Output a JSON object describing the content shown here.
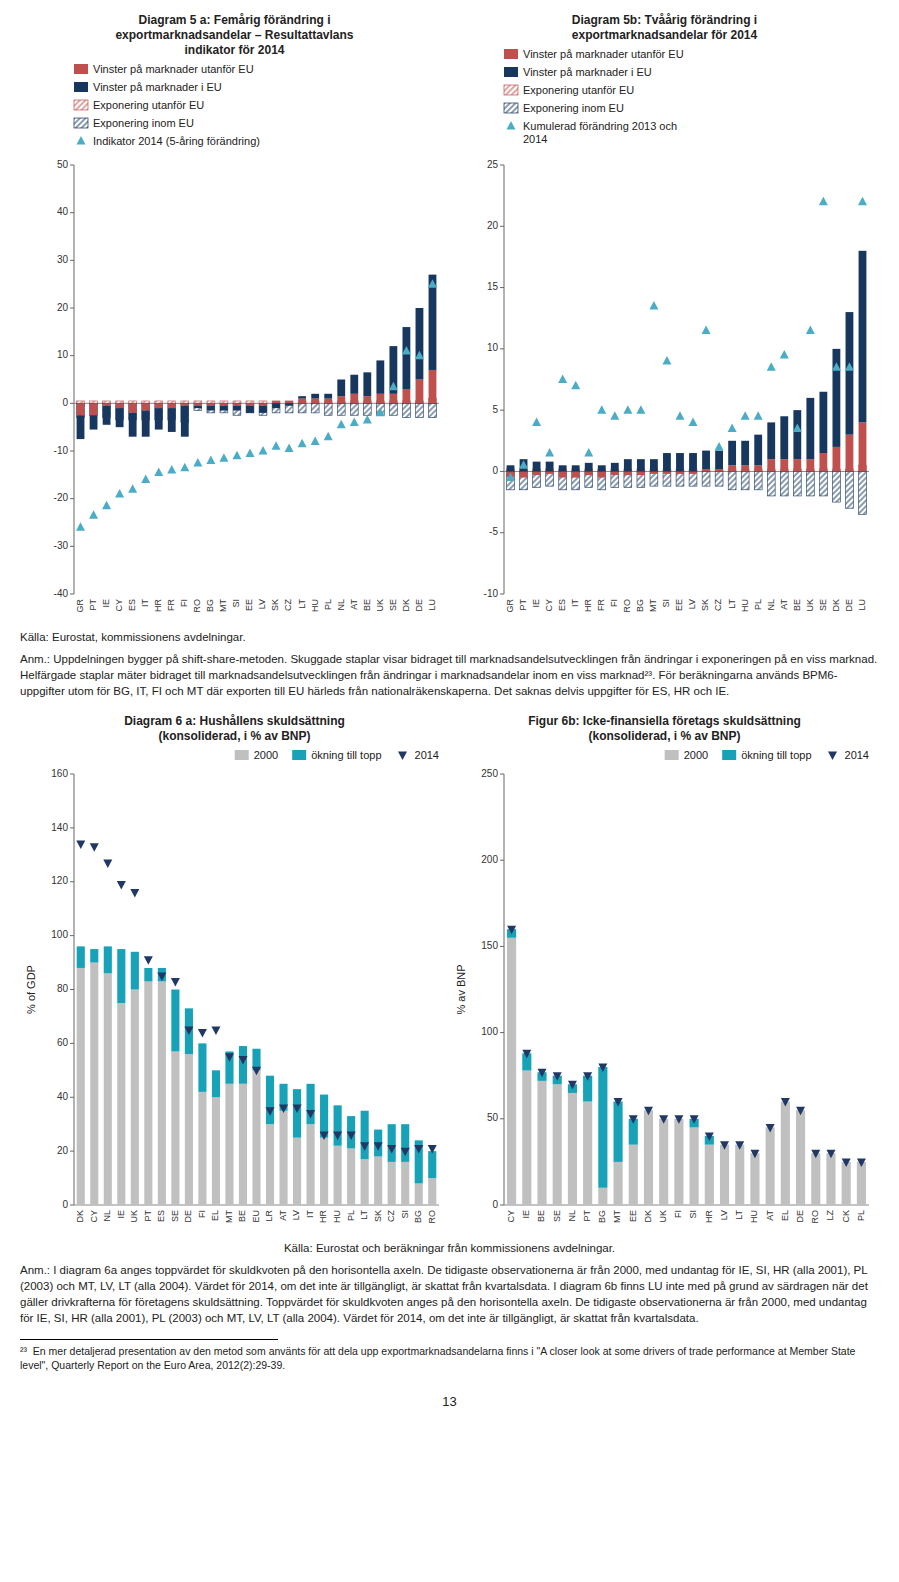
{
  "chart_data": [
    {
      "type": "bar",
      "title": "Diagram 5 a: Femårig förändring i\nexportmarknadsandelar – Resultattavlans\nindikator för 2014",
      "categories": [
        "GR",
        "PT",
        "IE",
        "CY",
        "ES",
        "IT",
        "HR",
        "FR",
        "FI",
        "RO",
        "BG",
        "MT",
        "SI",
        "EE",
        "LV",
        "SK",
        "CZ",
        "LT",
        "HU",
        "PL",
        "NL",
        "AT",
        "BE",
        "UK",
        "SE",
        "DK",
        "DE",
        "LU"
      ],
      "stacked": true,
      "legend": "upper left",
      "grid": false,
      "ylim": [
        -40,
        50
      ],
      "yticks": [
        -40,
        -30,
        -20,
        -10,
        0,
        10,
        20,
        30,
        40,
        50
      ],
      "series": [
        {
          "name": "Vinster på marknader utanför EU",
          "color": "#c0504d",
          "values": [
            -2.5,
            -2.5,
            -0.5,
            -1.0,
            -2.0,
            -1.5,
            -1.0,
            -1.0,
            -0.5,
            -0.5,
            -0.5,
            -0.5,
            -0.5,
            -0.5,
            -0.5,
            0.5,
            0.5,
            1.0,
            1.0,
            1.0,
            1.5,
            2.0,
            1.5,
            2.0,
            2.0,
            3.0,
            5.0,
            7.0
          ]
        },
        {
          "name": "Vinster på marknader i EU",
          "color": "#17375e",
          "values": [
            -5.0,
            -3.0,
            -4.0,
            -4.0,
            -5.0,
            -5.5,
            -4.5,
            -5.0,
            -6.5,
            -0.5,
            -1.0,
            -1.0,
            -1.0,
            -1.5,
            -1.5,
            -1.0,
            -0.5,
            0.5,
            1.0,
            1.0,
            3.5,
            4.0,
            5.0,
            7.0,
            10.0,
            13.0,
            15.0,
            20.0
          ]
        },
        {
          "name": "Exponering utanför EU",
          "color": "#c0504d",
          "line_style": "hatched",
          "values": [
            0.5,
            0.5,
            0.5,
            0.5,
            0.5,
            0.5,
            0.5,
            0.5,
            0.5,
            0.5,
            0.5,
            0.5,
            0.5,
            0.5,
            0.5,
            0.5,
            0.5,
            0.5,
            0.5,
            0.5,
            0.5,
            0.5,
            0.5,
            0.5,
            0.5,
            0.5,
            0.5,
            1.0
          ]
        },
        {
          "name": "Exponering inom EU",
          "color": "#17375e",
          "line_style": "hatched",
          "values": [
            -3.0,
            -2.5,
            -3.0,
            -3.5,
            -3.5,
            -3.5,
            -3.5,
            -3.5,
            -4.0,
            -1.5,
            -2.0,
            -2.0,
            -2.5,
            -2.0,
            -2.5,
            -2.0,
            -2.0,
            -2.0,
            -2.0,
            -2.5,
            -2.5,
            -2.5,
            -2.5,
            -2.5,
            -2.5,
            -3.0,
            -3.0,
            -3.0
          ]
        },
        {
          "name": "Indikator 2014 (5-åring förändring)",
          "type": "scatter",
          "marker": "triangle-up",
          "color": "#4bacc6",
          "values": [
            -26.0,
            -23.5,
            -21.5,
            -19.0,
            -18.0,
            -16.0,
            -14.5,
            -14.0,
            -13.5,
            -12.5,
            -12.0,
            -11.5,
            -11.0,
            -10.5,
            -10.0,
            -9.0,
            -9.5,
            -8.5,
            -8.0,
            -7.0,
            -4.5,
            -4.0,
            -3.5,
            -2.0,
            3.5,
            11.0,
            10.0,
            25.0
          ]
        }
      ]
    },
    {
      "type": "bar",
      "title": "Diagram 5b: Tvåårig förändring i\nexportmarknadsandelar för 2014",
      "categories": [
        "GR",
        "PT",
        "IE",
        "CY",
        "ES",
        "IT",
        "HR",
        "FR",
        "FI",
        "RO",
        "BG",
        "MT",
        "SI",
        "EE",
        "LV",
        "SK",
        "CZ",
        "LT",
        "HU",
        "PL",
        "NL",
        "AT",
        "BE",
        "UK",
        "SE",
        "DK",
        "DE",
        "LU"
      ],
      "stacked": true,
      "legend": "upper left",
      "grid": false,
      "ylim": [
        -10,
        25
      ],
      "yticks": [
        -10,
        -5,
        0,
        5,
        10,
        15,
        20,
        25
      ],
      "series": [
        {
          "name": "Vinster på marknader utanför EU",
          "color": "#c0504d",
          "values": [
            -0.5,
            -0.5,
            -0.3,
            -0.2,
            -0.5,
            -0.5,
            -0.3,
            -0.5,
            -0.3,
            -0.3,
            -0.3,
            -0.2,
            -0.2,
            -0.2,
            -0.2,
            0.2,
            0.2,
            0.5,
            0.5,
            0.5,
            1.0,
            1.0,
            1.0,
            1.0,
            1.5,
            2.0,
            3.0,
            4.0
          ]
        },
        {
          "name": "Vinster på marknader i EU",
          "color": "#17375e",
          "values": [
            0.5,
            1.0,
            0.8,
            0.8,
            0.5,
            0.5,
            0.7,
            0.5,
            0.7,
            1.0,
            1.0,
            1.0,
            1.5,
            1.5,
            1.5,
            1.5,
            1.5,
            2.0,
            2.0,
            2.5,
            3.0,
            3.5,
            4.0,
            5.0,
            5.0,
            8.0,
            10.0,
            14.0
          ]
        },
        {
          "name": "Exponering utanför EU",
          "color": "#c0504d",
          "line_style": "hatched",
          "values": [
            0.2,
            0.2,
            0.2,
            0.2,
            0.2,
            0.2,
            0.2,
            0.2,
            0.2,
            0.2,
            0.2,
            0.2,
            0.2,
            0.2,
            0.2,
            0.2,
            0.2,
            0.2,
            0.2,
            0.2,
            0.2,
            0.2,
            0.2,
            0.2,
            0.2,
            0.2,
            0.2,
            0.5
          ]
        },
        {
          "name": "Exponering inom EU",
          "color": "#17375e",
          "line_style": "hatched",
          "values": [
            -1.5,
            -1.5,
            -1.3,
            -1.2,
            -1.5,
            -1.5,
            -1.3,
            -1.5,
            -1.3,
            -1.3,
            -1.3,
            -1.2,
            -1.2,
            -1.2,
            -1.2,
            -1.2,
            -1.2,
            -1.5,
            -1.5,
            -1.5,
            -2.0,
            -2.0,
            -2.0,
            -2.0,
            -2.0,
            -2.5,
            -3.0,
            -3.5
          ]
        },
        {
          "name": "Kumulerad förändring 2013 och\n2014",
          "type": "scatter",
          "marker": "triangle-up",
          "color": "#4bacc6",
          "values": [
            -0.5,
            0.5,
            4.0,
            1.5,
            7.5,
            7.0,
            1.5,
            5.0,
            4.5,
            5.0,
            5.0,
            13.5,
            9.0,
            4.5,
            4.0,
            11.5,
            2.0,
            3.5,
            4.5,
            4.5,
            8.5,
            9.5,
            3.5,
            11.5,
            22.0,
            8.5,
            8.5,
            22.0
          ]
        }
      ]
    },
    {
      "type": "bar",
      "title": "Diagram 6 a: Hushållens skuldsättning\n(konsoliderad, i % av BNP)",
      "ylabel": "% of GDP",
      "categories": [
        "DK",
        "CY",
        "NL",
        "IE",
        "UK",
        "PT",
        "ES",
        "SE",
        "DE",
        "FI",
        "EL",
        "MT",
        "BE",
        "EU",
        "LR",
        "AT",
        "LV",
        "IT",
        "HR",
        "HU",
        "PL",
        "LT",
        "SK",
        "CZ",
        "SI",
        "BG",
        "RO"
      ],
      "stacked": true,
      "legend": "upper right",
      "grid": false,
      "ylim": [
        0,
        160
      ],
      "yticks": [
        0,
        20,
        40,
        60,
        80,
        100,
        120,
        140,
        160
      ],
      "series": [
        {
          "name": "2000",
          "color": "#c0c0c0",
          "values": [
            88,
            90,
            86,
            75,
            80,
            83,
            83,
            57,
            56,
            42,
            40,
            45,
            45,
            50,
            30,
            35,
            25,
            30,
            25,
            22,
            21,
            17,
            18,
            16,
            16,
            8,
            10
          ]
        },
        {
          "name": "ökning till topp",
          "color": "#17a2b8",
          "values": [
            8,
            5,
            10,
            20,
            14,
            5,
            5,
            23,
            17,
            18,
            10,
            12,
            14,
            8,
            18,
            10,
            18,
            15,
            16,
            15,
            12,
            18,
            10,
            14,
            14,
            16,
            10
          ]
        },
        {
          "name": "2014",
          "type": "scatter",
          "marker": "triangle-down",
          "color": "#1f3864",
          "values": [
            134,
            133,
            127,
            119,
            116,
            91,
            85,
            83,
            65,
            64,
            65,
            55,
            54,
            50,
            35,
            36,
            36,
            34,
            26,
            26,
            26,
            22,
            22,
            21,
            20,
            21,
            21
          ]
        }
      ]
    },
    {
      "type": "bar",
      "title": "Figur 6b: Icke-finansiella företags skuldsättning\n(konsoliderad, i % av BNP)",
      "ylabel": "% av BNP",
      "categories": [
        "CY",
        "IE",
        "BE",
        "SE",
        "NL",
        "PT",
        "BG",
        "MT",
        "EE",
        "DK",
        "UK",
        "FI",
        "SI",
        "HR",
        "LV",
        "LT",
        "HU",
        "AT",
        "EL",
        "DE",
        "RO",
        "LZ",
        "CK",
        "PL"
      ],
      "stacked": true,
      "legend": "upper right",
      "grid": false,
      "ylim": [
        0,
        250
      ],
      "yticks": [
        0,
        50,
        100,
        150,
        200,
        250
      ],
      "series": [
        {
          "name": "2000",
          "color": "#c0c0c0",
          "values": [
            155,
            78,
            72,
            70,
            65,
            60,
            10,
            25,
            35,
            55,
            50,
            50,
            45,
            35,
            35,
            35,
            30,
            45,
            60,
            55,
            30,
            30,
            25,
            25
          ]
        },
        {
          "name": "ökning till topp",
          "color": "#17a2b8",
          "values": [
            5,
            10,
            5,
            5,
            5,
            15,
            70,
            35,
            15,
            0,
            0,
            0,
            5,
            5,
            0,
            0,
            0,
            0,
            0,
            0,
            0,
            0,
            0,
            0
          ]
        },
        {
          "name": "2014",
          "type": "scatter",
          "marker": "triangle-down",
          "color": "#1f3864",
          "values": [
            160,
            88,
            77,
            75,
            70,
            75,
            80,
            60,
            50,
            55,
            50,
            50,
            50,
            40,
            35,
            35,
            30,
            45,
            60,
            55,
            30,
            30,
            25,
            25
          ]
        }
      ]
    }
  ],
  "annotations": [
    "Källa: Eurostat, kommissionens avdelningar.",
    "Anm.: Uppdelningen bygger på shift-share-metoden. Skuggade staplar visar bidraget till marknadsandelsutvecklingen från ändringar i exponeringen på en viss marknad. Helfärgade staplar mäter bidraget till marknadsandelsutvecklingen från ändringar i marknadsandelar inom en viss marknad²³. För beräkningarna används BPM6-uppgifter utom för BG, IT, FI och MT där exporten till EU härleds från nationalräkenskaperna. Det saknas delvis uppgifter för ES, HR och IE.",
    "Källa: Eurostat och beräkningar från kommissionens avdelningar.",
    "Anm.: I diagram 6a anges toppvärdet för skuldkvoten på den horisontella axeln. De tidigaste observationerna är från 2000, med undantag för IE, SI, HR (alla 2001), PL (2003) och MT, LV, LT (alla 2004). Värdet för 2014, om det inte är tillgängligt, är skattat från kvartalsdata. I diagram 6b finns LU inte med på grund av särdragen när det gäller drivkrafterna för företagens skuldsättning. Toppvärdet för skuldkvoten anges på den horisontella axeln. De tidigaste observationerna är från 2000, med undantag för IE, SI, HR (alla 2001), PL (2003) och MT, LV, LT (alla 2004). Värdet för 2014, om det inte är tillgängligt, är skattat från kvartalsdata.",
    "²³  En mer detaljerad presentation av den metod som använts för att dela upp exportmarknadsandelarna finns i \"A closer look at some drivers of trade performance at Member State level\", Quarterly Report on the Euro Area, 2012(2):29-39.",
    "13"
  ]
}
